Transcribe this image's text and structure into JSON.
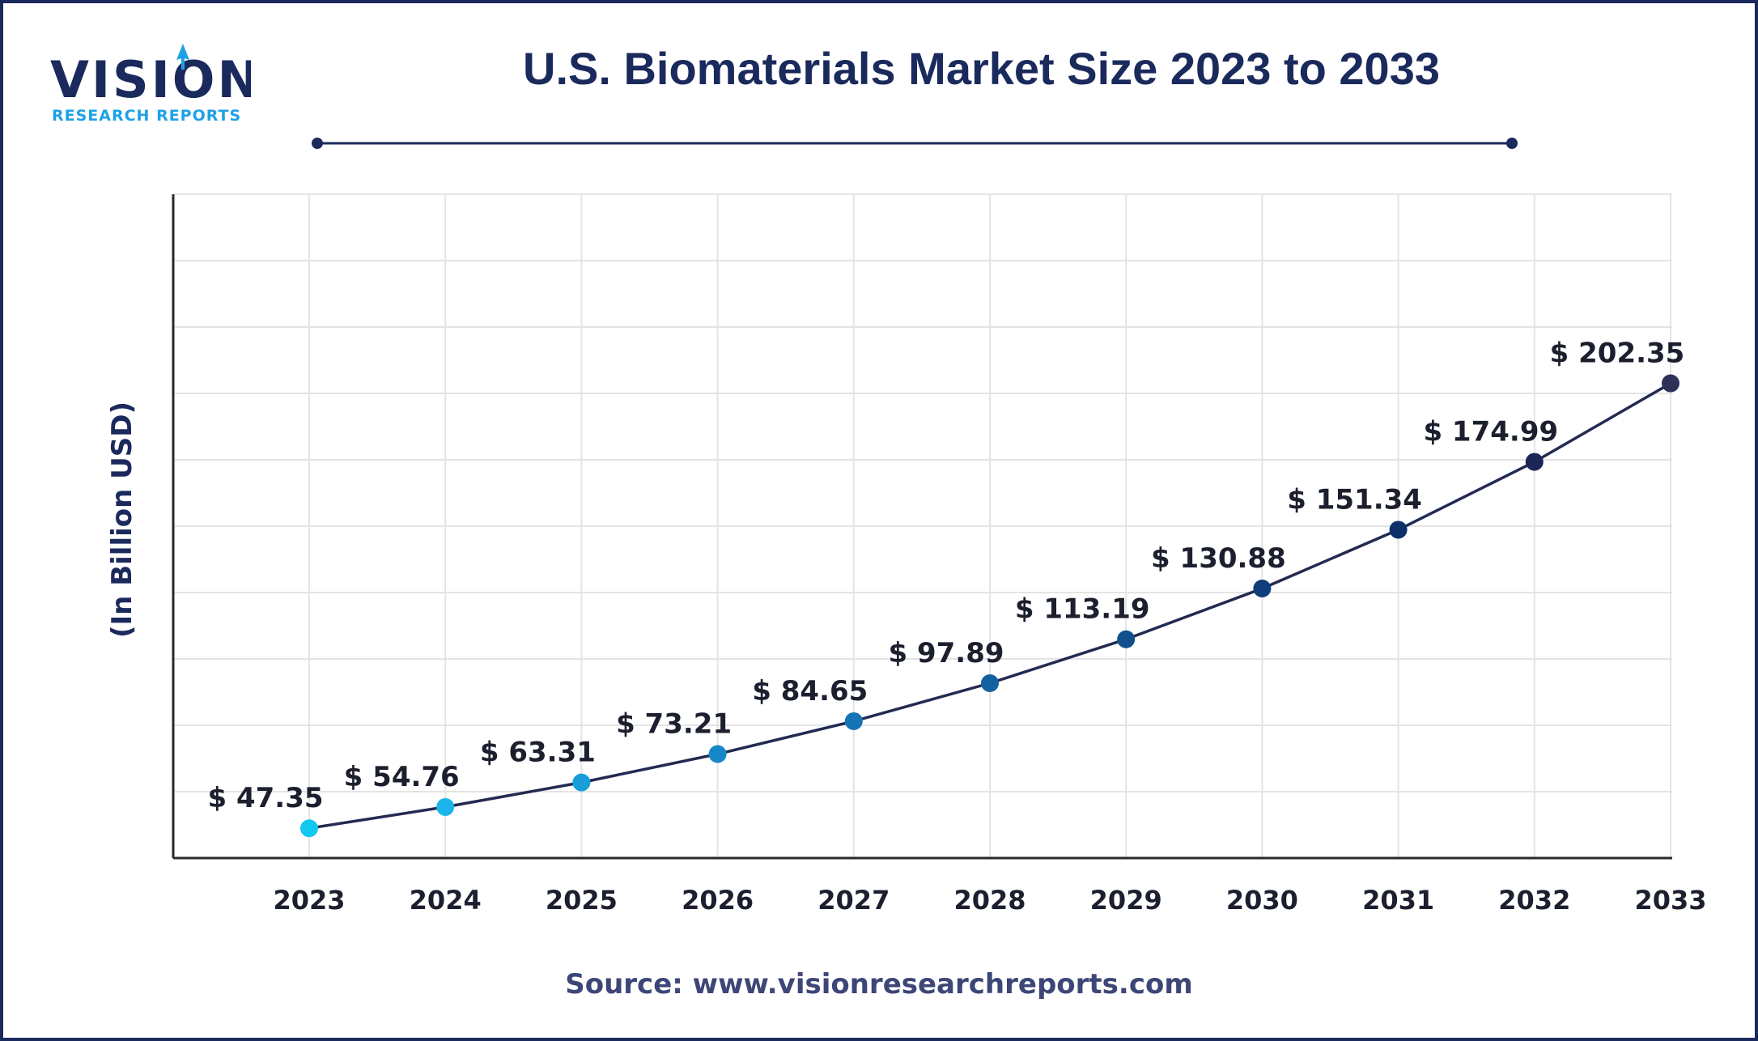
{
  "brand": {
    "name": "VISION",
    "tagline": "RESEARCH REPORTS",
    "navy": "#1b2a5c",
    "blue": "#1da1e6"
  },
  "source_text": "Source: www.visionresearchreports.com",
  "chart_data": {
    "type": "line",
    "title": "U.S. Biomaterials Market Size 2023 to 2033",
    "ylabel": "(In Billion USD)",
    "xlabel": "",
    "x": [
      "2023",
      "2024",
      "2025",
      "2026",
      "2027",
      "2028",
      "2029",
      "2030",
      "2031",
      "2032",
      "2033"
    ],
    "series": [
      {
        "values": [
          47.35,
          54.76,
          63.31,
          73.21,
          84.65,
          97.89,
          113.19,
          130.88,
          151.34,
          174.99,
          202.35
        ],
        "labels": [
          "$ 47.35",
          "$ 54.76",
          "$ 63.31",
          "$ 73.21",
          "$ 84.65",
          "$ 97.89",
          "$ 113.19",
          "$ 130.88",
          "$ 151.34",
          "$ 174.99",
          "$ 202.35"
        ]
      }
    ],
    "ylim": [
      0,
      230
    ],
    "grid": true,
    "line_color": "#232a52",
    "point_colors": [
      "#12c8f0",
      "#1bb5e9",
      "#199ed9",
      "#1788c6",
      "#1574b3",
      "#1461a0",
      "#114f8d",
      "#0f3e7a",
      "#0d2f68",
      "#1b2558",
      "#2d3158"
    ]
  }
}
